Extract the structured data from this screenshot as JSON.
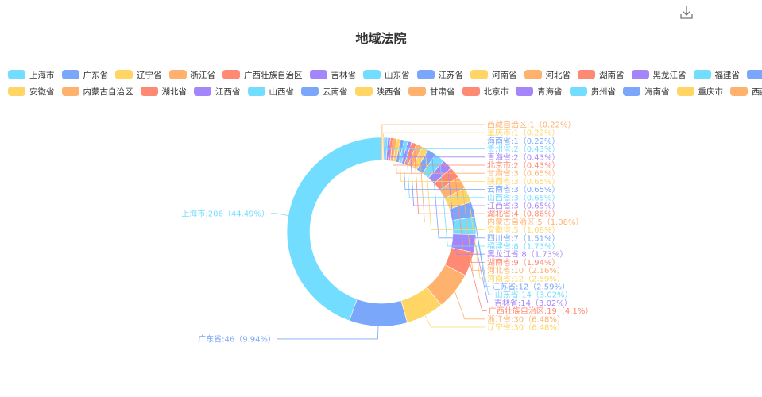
{
  "toolbar": {
    "download_icon": "download-icon"
  },
  "chart_data": {
    "type": "pie",
    "variant": "donut",
    "title": "地域法院",
    "legend_position": "top",
    "palette": [
      "#73DDFF",
      "#7AA7F9",
      "#FFD666",
      "#FFB16E",
      "#FF8A73",
      "#A586FA"
    ],
    "slices": [
      {
        "name": "上海市",
        "value": 206,
        "label": "上海市:206（44.49%）"
      },
      {
        "name": "广东省",
        "value": 46,
        "label": "广东省:46（9.94%）"
      },
      {
        "name": "辽宁省",
        "value": 30,
        "label": "辽宁省:30（6.48%）"
      },
      {
        "name": "浙江省",
        "value": 30,
        "label": "浙江省:30（6.48%）"
      },
      {
        "name": "广西壮族自治区",
        "value": 19,
        "label": "广西壮族自治区:19（4.1%）"
      },
      {
        "name": "吉林省",
        "value": 14,
        "label": "吉林省:14（3.02%）"
      },
      {
        "name": "山东省",
        "value": 14,
        "label": "山东省:14（3.02%）"
      },
      {
        "name": "江苏省",
        "value": 12,
        "label": "江苏省:12（2.59%）"
      },
      {
        "name": "河南省",
        "value": 12,
        "label": "河南省:12（2.59%）"
      },
      {
        "name": "河北省",
        "value": 10,
        "label": "河北省:10（2.16%）"
      },
      {
        "name": "湖南省",
        "value": 9,
        "label": "湖南省:9（1.94%）"
      },
      {
        "name": "黑龙江省",
        "value": 8,
        "label": "黑龙江省:8（1.73%）"
      },
      {
        "name": "福建省",
        "value": 8,
        "label": "福建省:8（1.73%）"
      },
      {
        "name": "四川省",
        "value": 7,
        "label": "四川省:7（1.51%）"
      },
      {
        "name": "安徽省",
        "value": 5,
        "label": "安徽省:5（1.08%）"
      },
      {
        "name": "内蒙古自治区",
        "value": 5,
        "label": "内蒙古自治区:5（1.08%）"
      },
      {
        "name": "湖北省",
        "value": 4,
        "label": "湖北省:4（0.86%）"
      },
      {
        "name": "江西省",
        "value": 3,
        "label": "江西省:3（0.65%）"
      },
      {
        "name": "山西省",
        "value": 3,
        "label": "山西省:3（0.65%）"
      },
      {
        "name": "云南省",
        "value": 3,
        "label": "云南省:3（0.65%）"
      },
      {
        "name": "陕西省",
        "value": 3,
        "label": "陕西省:3（0.65%）"
      },
      {
        "name": "甘肃省",
        "value": 3,
        "label": "甘肃省:3（0.65%）"
      },
      {
        "name": "北京市",
        "value": 2,
        "label": "北京市:2（0.43%）"
      },
      {
        "name": "青海省",
        "value": 2,
        "label": "青海省:2（0.43%）"
      },
      {
        "name": "贵州省",
        "value": 2,
        "label": "贵州省:2（0.43%）"
      },
      {
        "name": "海南省",
        "value": 1,
        "label": "海南省:1（0.22%）"
      },
      {
        "name": "重庆市",
        "value": 1,
        "label": "重庆市:1（0.22%）"
      },
      {
        "name": "西藏自治区",
        "value": 1,
        "label": "西藏自治区:1（0.22%）"
      }
    ]
  }
}
